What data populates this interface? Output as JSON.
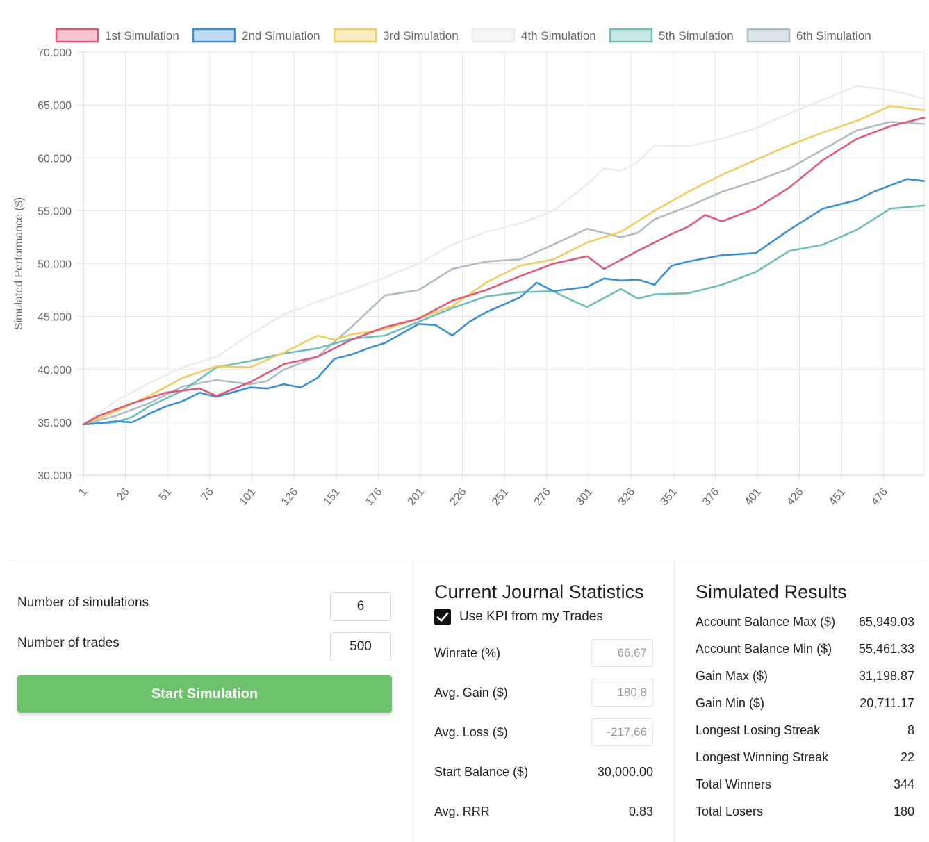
{
  "chart_data": {
    "type": "line",
    "ylabel": "Simulated Performance ($)",
    "xlabel": "",
    "ylim": [
      30000,
      70000
    ],
    "yticks": [
      30000,
      35000,
      40000,
      45000,
      50000,
      55000,
      60000,
      65000,
      70000
    ],
    "ytick_labels": [
      "30.000",
      "35.000",
      "40.000",
      "45.000",
      "50.000",
      "55.000",
      "60.000",
      "65.000",
      "70.000"
    ],
    "xlim": [
      1,
      500
    ],
    "xtick_labels": [
      "1",
      "26",
      "51",
      "76",
      "101",
      "126",
      "151",
      "176",
      "201",
      "226",
      "251",
      "276",
      "301",
      "326",
      "351",
      "376",
      "401",
      "426",
      "451",
      "476"
    ],
    "legend_position": "top",
    "series": [
      {
        "name": "1st Simulation",
        "color": "#e05a78",
        "fill": "#f7c6d0",
        "x": [
          1,
          10,
          30,
          50,
          70,
          80,
          100,
          120,
          140,
          160,
          180,
          200,
          220,
          240,
          260,
          280,
          300,
          310,
          330,
          350,
          360,
          370,
          380,
          400,
          420,
          440,
          460,
          480,
          500
        ],
        "values": [
          34800,
          35600,
          36800,
          37800,
          38200,
          37500,
          38800,
          40500,
          41200,
          42800,
          44000,
          44800,
          46500,
          47500,
          48800,
          50000,
          50700,
          49500,
          51200,
          52800,
          53500,
          54600,
          54000,
          55200,
          57200,
          59800,
          61800,
          63000,
          63800
        ]
      },
      {
        "name": "2nd Simulation",
        "color": "#3b90d1",
        "fill": "#bfdcf4",
        "x": [
          1,
          10,
          20,
          30,
          40,
          50,
          60,
          70,
          80,
          100,
          110,
          120,
          130,
          140,
          150,
          160,
          170,
          180,
          200,
          210,
          220,
          230,
          240,
          260,
          270,
          280,
          290,
          300,
          310,
          320,
          330,
          340,
          350,
          360,
          380,
          400,
          420,
          440,
          460,
          470,
          490,
          500
        ],
        "values": [
          34800,
          34900,
          35100,
          35000,
          35800,
          36500,
          37000,
          37800,
          37400,
          38300,
          38200,
          38600,
          38300,
          39200,
          41000,
          41400,
          42000,
          42500,
          44300,
          44200,
          43200,
          44500,
          45400,
          46800,
          48200,
          47400,
          47600,
          47800,
          48600,
          48400,
          48500,
          48000,
          49800,
          50200,
          50800,
          51000,
          53200,
          55200,
          56000,
          56800,
          58000,
          57800
        ]
      },
      {
        "name": "3rd Simulation",
        "color": "#f0cd62",
        "fill": "#faeec0",
        "x": [
          1,
          20,
          40,
          60,
          80,
          100,
          120,
          140,
          150,
          160,
          180,
          200,
          220,
          240,
          260,
          280,
          300,
          320,
          340,
          360,
          380,
          400,
          420,
          440,
          460,
          480,
          500
        ],
        "values": [
          34800,
          36000,
          37500,
          39200,
          40300,
          40200,
          41600,
          43200,
          42800,
          43300,
          43800,
          44800,
          46000,
          48200,
          49800,
          50400,
          52000,
          53000,
          55000,
          56800,
          58400,
          59800,
          61200,
          62400,
          63500,
          64900,
          64500
        ]
      },
      {
        "name": "4th Simulation",
        "color": "#ececec",
        "fill": "#f6f6f6",
        "x": [
          1,
          20,
          40,
          60,
          80,
          100,
          120,
          140,
          160,
          180,
          200,
          220,
          240,
          260,
          280,
          300,
          310,
          320,
          330,
          340,
          360,
          380,
          400,
          420,
          440,
          460,
          480,
          500
        ],
        "values": [
          34800,
          37000,
          38700,
          40200,
          41200,
          43300,
          45200,
          46400,
          47500,
          48700,
          50000,
          51800,
          53000,
          53800,
          55000,
          57500,
          59000,
          58800,
          59600,
          61200,
          61100,
          61800,
          62800,
          64200,
          65500,
          66800,
          66400,
          65600
        ]
      },
      {
        "name": "5th Simulation",
        "color": "#6fbeb8",
        "fill": "#c6e8e4",
        "x": [
          1,
          20,
          30,
          40,
          60,
          80,
          100,
          120,
          140,
          160,
          180,
          200,
          220,
          240,
          260,
          280,
          290,
          300,
          320,
          330,
          340,
          360,
          380,
          400,
          420,
          440,
          460,
          480,
          500
        ],
        "values": [
          34800,
          35000,
          35500,
          36500,
          38000,
          40200,
          40800,
          41500,
          42000,
          42900,
          43200,
          44500,
          45800,
          46900,
          47300,
          47400,
          46600,
          45900,
          47600,
          46700,
          47100,
          47200,
          48000,
          49200,
          51200,
          51800,
          53200,
          55200,
          55500
        ]
      },
      {
        "name": "6th Simulation",
        "color": "#aebcc6",
        "fill": "#dde4ea",
        "x": [
          1,
          20,
          40,
          60,
          80,
          100,
          110,
          120,
          140,
          160,
          180,
          200,
          220,
          240,
          250,
          260,
          280,
          300,
          320,
          330,
          340,
          360,
          380,
          400,
          420,
          440,
          460,
          480,
          500
        ],
        "values": [
          34800,
          35600,
          36800,
          38400,
          39000,
          38600,
          38900,
          40000,
          41200,
          44000,
          47000,
          47500,
          49500,
          50200,
          50300,
          50400,
          51800,
          53300,
          52500,
          52900,
          54200,
          55400,
          56800,
          57800,
          59000,
          60800,
          62600,
          63400,
          63200
        ]
      }
    ]
  },
  "settings": {
    "sims_label": "Number of simulations",
    "sims_value": "6",
    "trades_label": "Number of trades",
    "trades_value": "500",
    "start_button": "Start Simulation"
  },
  "journal": {
    "title": "Current Journal Statistics",
    "use_kpi_label": "Use KPI from my Trades",
    "use_kpi_checked": true,
    "winrate_label": "Winrate (%)",
    "winrate_value": "66,67",
    "avg_gain_label": "Avg. Gain ($)",
    "avg_gain_value": "180,8",
    "avg_loss_label": "Avg. Loss ($)",
    "avg_loss_value": "-217,66",
    "start_balance_label": "Start Balance ($)",
    "start_balance_value": "30,000.00",
    "avg_rrr_label": "Avg. RRR",
    "avg_rrr_value": "0.83"
  },
  "results": {
    "title": "Simulated Results",
    "items": [
      {
        "label": "Account Balance Max ($)",
        "value": "65,949.03"
      },
      {
        "label": "Account Balance Min ($)",
        "value": "55,461.33"
      },
      {
        "label": "Gain Max ($)",
        "value": "31,198.87"
      },
      {
        "label": "Gain Min ($)",
        "value": "20,711.17"
      },
      {
        "label": "Longest Losing Streak",
        "value": "8"
      },
      {
        "label": "Longest Winning Streak",
        "value": "22"
      },
      {
        "label": "Total Winners",
        "value": "344"
      },
      {
        "label": "Total Losers",
        "value": "180"
      }
    ]
  }
}
